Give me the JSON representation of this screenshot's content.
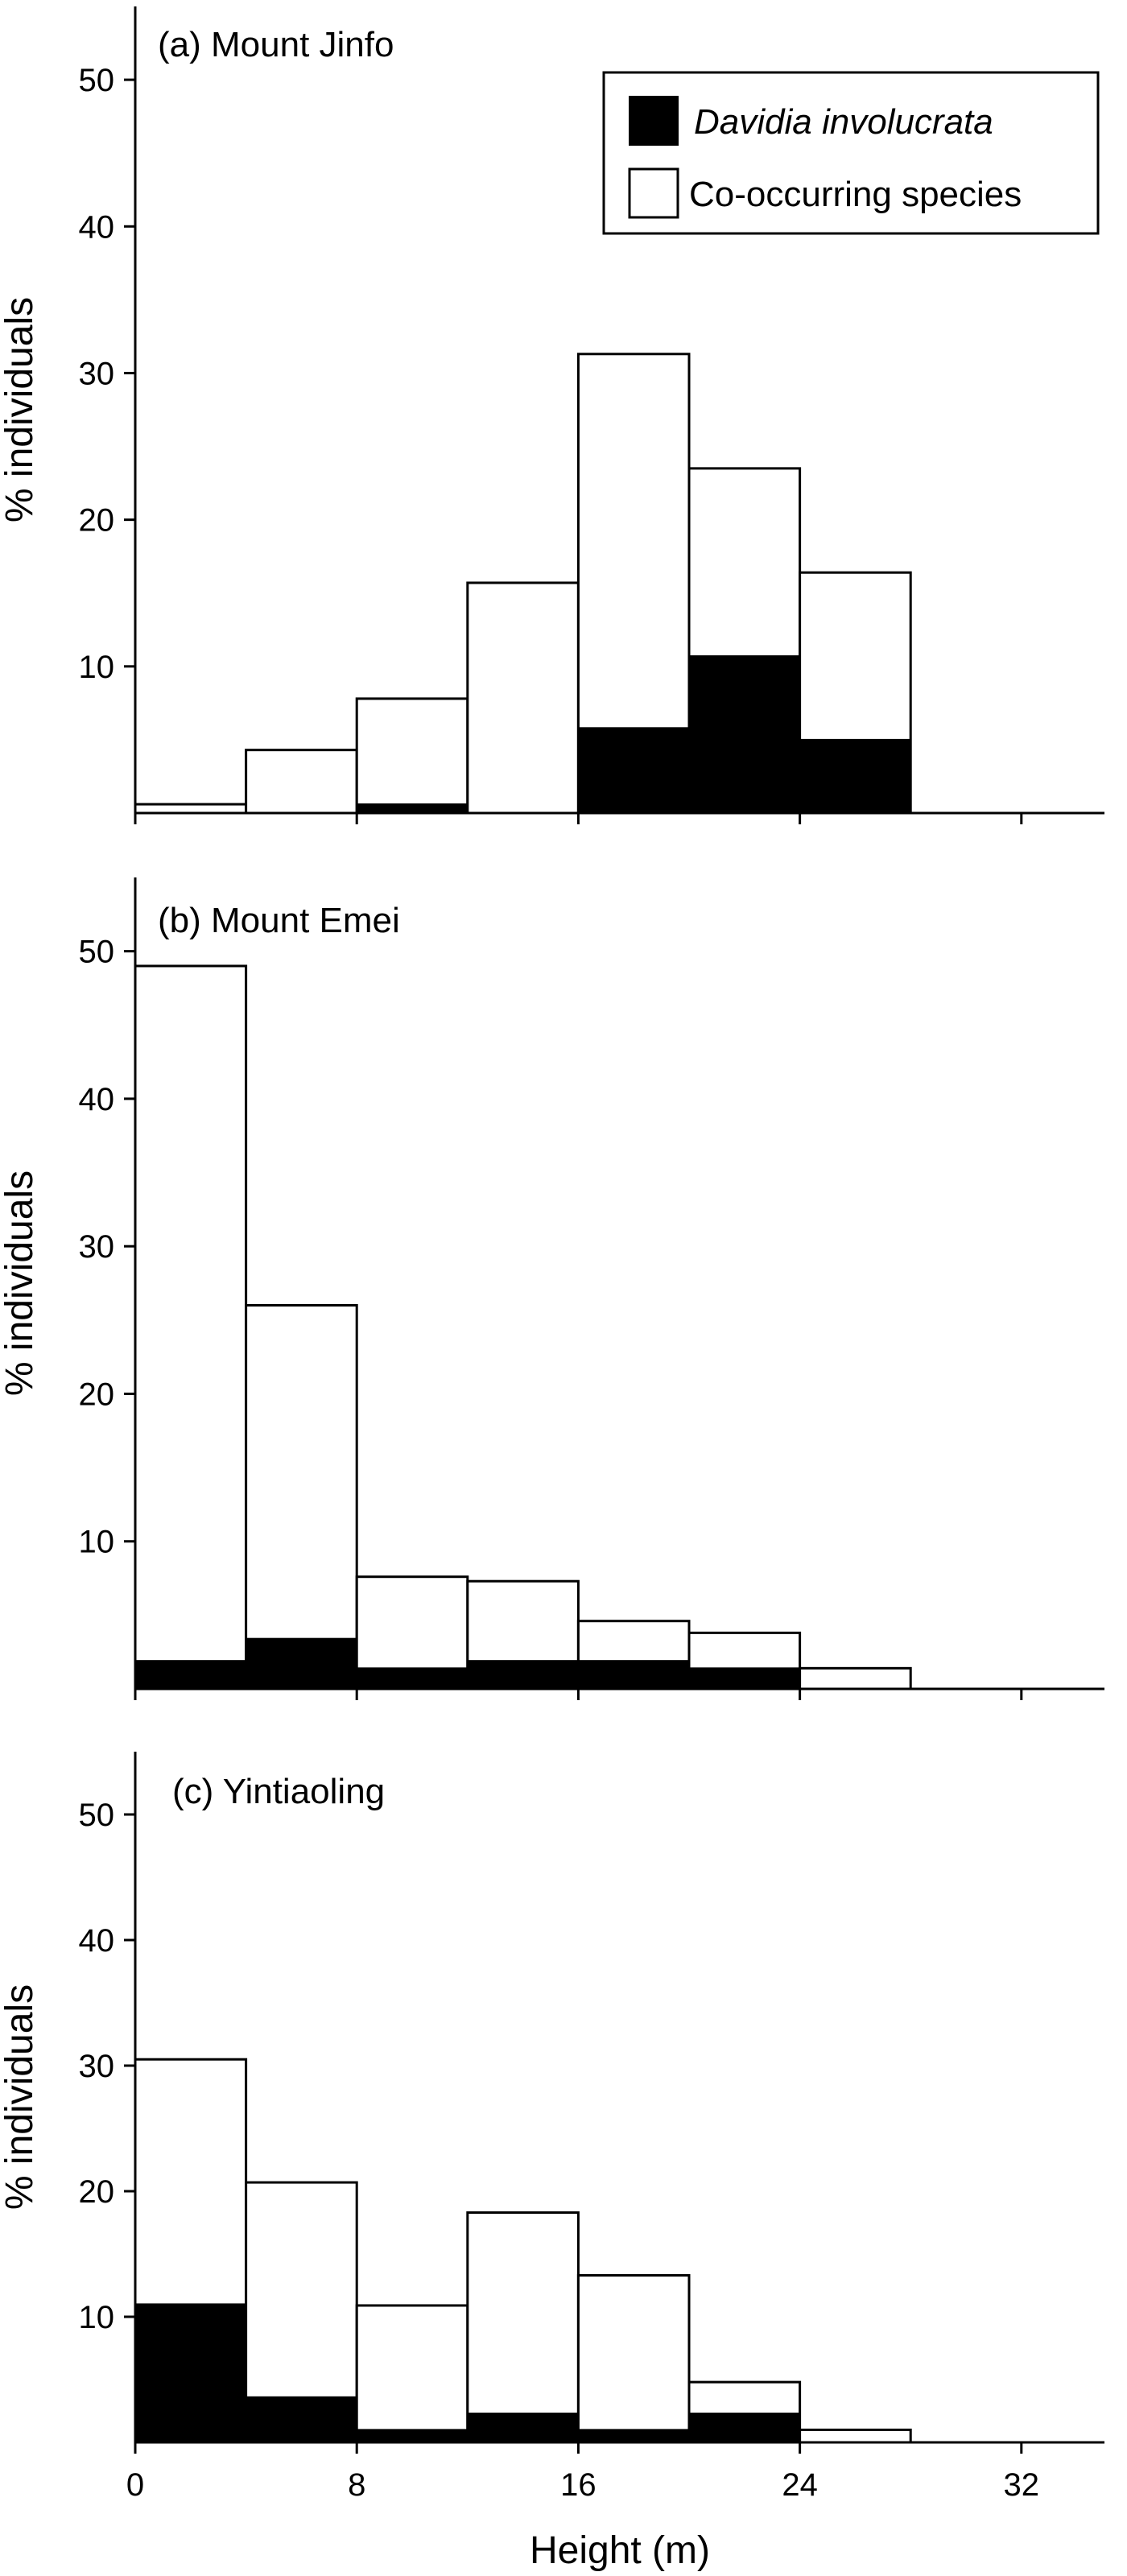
{
  "chart_data": [
    {
      "type": "bar",
      "stacked": false,
      "overlaid": true,
      "panel_label": "(a) Mount Jinfo",
      "ylabel": "% individuals",
      "xlabel": "",
      "ylim": [
        0,
        55
      ],
      "yticks": [
        10,
        20,
        30,
        40,
        50
      ],
      "xlim": [
        0,
        35
      ],
      "xticks": [
        0,
        8,
        16,
        24,
        32
      ],
      "xtick_labels": [],
      "bin_edges": [
        0,
        4,
        8,
        12,
        16,
        20,
        24,
        28,
        32
      ],
      "series": [
        {
          "name": "Co-occurring species",
          "values": [
            0.6,
            4.3,
            7.8,
            15.7,
            31.3,
            23.5,
            16.4,
            0
          ]
        },
        {
          "name": "Davidia involucrata",
          "values": [
            0,
            0,
            0.6,
            0,
            5.8,
            10.7,
            5.0,
            0
          ]
        }
      ],
      "legend": {
        "placement": "top-right",
        "entries": [
          "Davidia involucrata",
          "Co-occurring species"
        ]
      }
    },
    {
      "type": "bar",
      "stacked": false,
      "overlaid": true,
      "panel_label": "(b) Mount Emei",
      "ylabel": "% individuals",
      "xlabel": "",
      "ylim": [
        0,
        55
      ],
      "yticks": [
        10,
        20,
        30,
        40,
        50
      ],
      "xlim": [
        0,
        35
      ],
      "xticks": [
        0,
        8,
        16,
        24,
        32
      ],
      "xtick_labels": [],
      "bin_edges": [
        0,
        4,
        8,
        12,
        16,
        20,
        24,
        28,
        32
      ],
      "series": [
        {
          "name": "Co-occurring species",
          "values": [
            49.0,
            26.0,
            7.6,
            7.3,
            4.6,
            3.8,
            1.4,
            0
          ]
        },
        {
          "name": "Davidia involucrata",
          "values": [
            1.9,
            3.4,
            1.4,
            1.9,
            1.9,
            1.4,
            0,
            0
          ]
        }
      ]
    },
    {
      "type": "bar",
      "stacked": false,
      "overlaid": true,
      "panel_label": "(c) Yintiaoling",
      "ylabel": "% individuals",
      "xlabel": "Height (m)",
      "ylim": [
        0,
        55
      ],
      "yticks": [
        10,
        20,
        30,
        40,
        50
      ],
      "xlim": [
        0,
        35
      ],
      "xticks": [
        0,
        8,
        16,
        24,
        32
      ],
      "xtick_labels": [
        "0",
        "8",
        "16",
        "24",
        "32"
      ],
      "bin_edges": [
        0,
        4,
        8,
        12,
        16,
        20,
        24,
        28,
        32
      ],
      "series": [
        {
          "name": "Co-occurring species",
          "values": [
            30.5,
            20.7,
            10.9,
            18.3,
            13.3,
            4.8,
            1.0,
            0
          ]
        },
        {
          "name": "Davidia involucrata",
          "values": [
            11.0,
            3.6,
            1.0,
            2.3,
            1.0,
            2.3,
            0,
            0
          ]
        }
      ]
    }
  ]
}
